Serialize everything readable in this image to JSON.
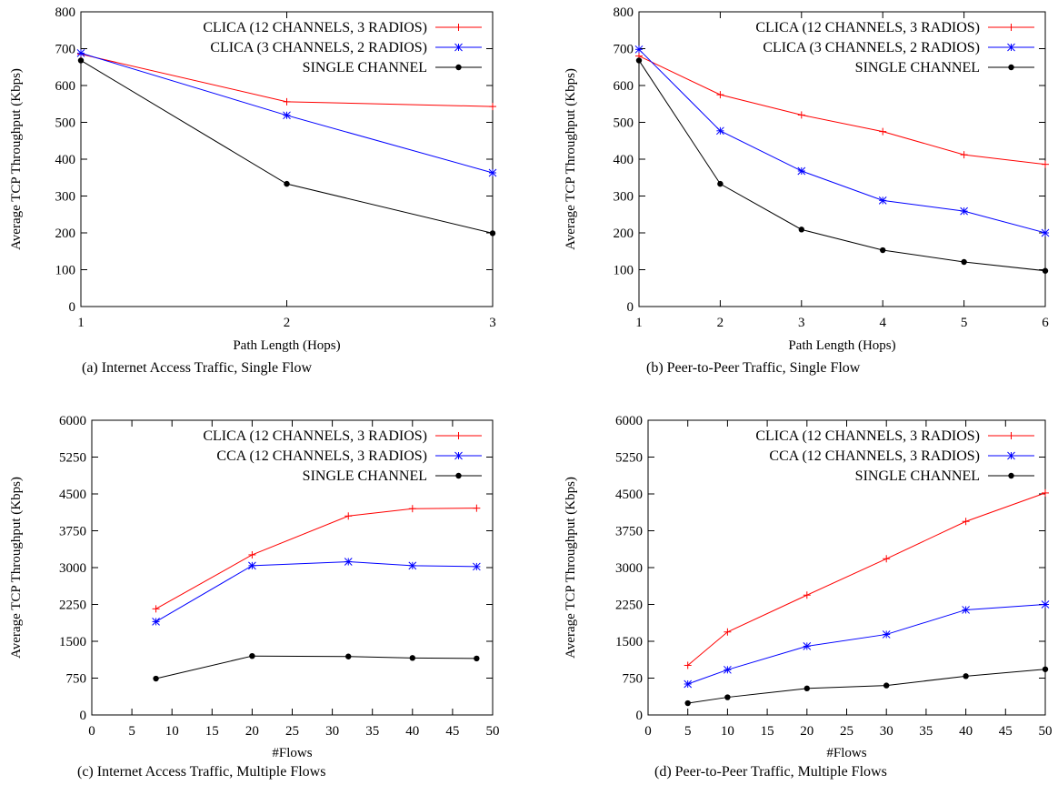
{
  "colors": {
    "red": "#ff0000",
    "blue": "#0000ff",
    "black": "#000000"
  },
  "chart_data": [
    {
      "type": "line",
      "caption": "(a)  Internet Access Traffic, Single Flow",
      "xlabel": "Path Length (Hops)",
      "ylabel": "Average TCP Throughput (Kbps)",
      "xlim": [
        1,
        3
      ],
      "ylim": [
        0,
        800
      ],
      "xticks": [
        1,
        2,
        3
      ],
      "yticks": [
        0,
        100,
        200,
        300,
        400,
        500,
        600,
        700,
        800
      ],
      "legend_position": "top-right",
      "series": [
        {
          "name": "CLICA (12 CHANNELS, 3 RADIOS)",
          "color": "#ff0000",
          "marker": "plus",
          "x": [
            1,
            2,
            3
          ],
          "y": [
            685,
            556,
            543
          ]
        },
        {
          "name": "CLICA (3 CHANNELS, 2 RADIOS)",
          "color": "#0000ff",
          "marker": "star",
          "x": [
            1,
            2,
            3
          ],
          "y": [
            688,
            519,
            363
          ]
        },
        {
          "name": "SINGLE CHANNEL",
          "color": "#000000",
          "marker": "dot",
          "x": [
            1,
            2,
            3
          ],
          "y": [
            668,
            333,
            199
          ]
        }
      ]
    },
    {
      "type": "line",
      "caption": "(b)  Peer-to-Peer Traffic, Single Flow",
      "xlabel": "Path Length (Hops)",
      "ylabel": "Average TCP Throughput (Kbps)",
      "xlim": [
        1,
        6
      ],
      "ylim": [
        0,
        800
      ],
      "xticks": [
        1,
        2,
        3,
        4,
        5,
        6
      ],
      "yticks": [
        0,
        100,
        200,
        300,
        400,
        500,
        600,
        700,
        800
      ],
      "legend_position": "top-right",
      "series": [
        {
          "name": "CLICA (12 CHANNELS, 3 RADIOS)",
          "color": "#ff0000",
          "marker": "plus",
          "x": [
            1,
            2,
            3,
            4,
            5,
            6
          ],
          "y": [
            680,
            575,
            520,
            475,
            412,
            386
          ]
        },
        {
          "name": "CLICA (3 CHANNELS, 2 RADIOS)",
          "color": "#0000ff",
          "marker": "star",
          "x": [
            1,
            2,
            3,
            4,
            5,
            6
          ],
          "y": [
            698,
            477,
            368,
            288,
            259,
            200
          ]
        },
        {
          "name": "SINGLE CHANNEL",
          "color": "#000000",
          "marker": "dot",
          "x": [
            1,
            2,
            3,
            4,
            5,
            6
          ],
          "y": [
            668,
            333,
            209,
            153,
            121,
            97
          ]
        }
      ]
    },
    {
      "type": "line",
      "caption": "(c)  Internet Access Traffic, Multiple Flows",
      "xlabel": "#Flows",
      "ylabel": "Average TCP Throughput (Kbps)",
      "xlim": [
        0,
        50
      ],
      "ylim": [
        0,
        6000
      ],
      "xticks": [
        0,
        5,
        10,
        15,
        20,
        25,
        30,
        35,
        40,
        45,
        50
      ],
      "yticks": [
        0,
        750,
        1500,
        2250,
        3000,
        3750,
        4500,
        5250,
        6000
      ],
      "legend_position": "top-right",
      "series": [
        {
          "name": "CLICA (12 CHANNELS, 3 RADIOS)",
          "color": "#ff0000",
          "marker": "plus",
          "x": [
            8,
            20,
            32,
            40,
            48
          ],
          "y": [
            2160,
            3260,
            4050,
            4200,
            4210
          ]
        },
        {
          "name": "CCA (12 CHANNELS, 3 RADIOS)",
          "color": "#0000ff",
          "marker": "star",
          "x": [
            8,
            20,
            32,
            40,
            48
          ],
          "y": [
            1900,
            3040,
            3120,
            3040,
            3020
          ]
        },
        {
          "name": "SINGLE CHANNEL",
          "color": "#000000",
          "marker": "dot",
          "x": [
            8,
            20,
            32,
            40,
            48
          ],
          "y": [
            740,
            1200,
            1190,
            1160,
            1150
          ]
        }
      ]
    },
    {
      "type": "line",
      "caption": "(d)  Peer-to-Peer Traffic, Multiple Flows",
      "xlabel": "#Flows",
      "ylabel": "Average TCP Throughput (Kbps)",
      "xlim": [
        0,
        50
      ],
      "ylim": [
        0,
        6000
      ],
      "xticks": [
        0,
        5,
        10,
        15,
        20,
        25,
        30,
        35,
        40,
        45,
        50
      ],
      "yticks": [
        0,
        750,
        1500,
        2250,
        3000,
        3750,
        4500,
        5250,
        6000
      ],
      "legend_position": "top-right",
      "series": [
        {
          "name": "CLICA (12 CHANNELS, 3 RADIOS)",
          "color": "#ff0000",
          "marker": "plus",
          "x": [
            5,
            10,
            20,
            30,
            40,
            50
          ],
          "y": [
            1010,
            1690,
            2440,
            3180,
            3940,
            4520
          ]
        },
        {
          "name": "CCA (12 CHANNELS, 3 RADIOS)",
          "color": "#0000ff",
          "marker": "star",
          "x": [
            5,
            10,
            20,
            30,
            40,
            50
          ],
          "y": [
            630,
            920,
            1400,
            1640,
            2140,
            2250
          ]
        },
        {
          "name": "SINGLE CHANNEL",
          "color": "#000000",
          "marker": "dot",
          "x": [
            5,
            10,
            20,
            30,
            40,
            50
          ],
          "y": [
            240,
            360,
            540,
            600,
            790,
            930
          ]
        }
      ]
    }
  ]
}
